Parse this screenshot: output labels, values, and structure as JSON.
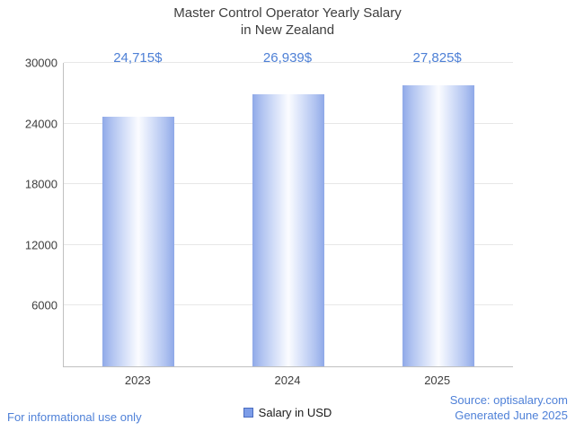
{
  "title": {
    "line1": "Master Control Operator Yearly Salary",
    "line2": "in New Zealand"
  },
  "chart_data": {
    "type": "bar",
    "categories": [
      "2023",
      "2024",
      "2025"
    ],
    "values": [
      24715,
      26939,
      27825
    ],
    "value_labels": [
      "24,715$",
      "26,939$",
      "27,825$"
    ],
    "ylim": [
      0,
      30000
    ],
    "yticks": [
      6000,
      12000,
      18000,
      24000,
      30000
    ],
    "grid": "horizontal",
    "legend_position": "bottom-center",
    "legend_label": "Salary in USD",
    "bar_edge_color": "#8fa9e8",
    "bar_center_color": "#fbfcff",
    "value_label_color": "#4e80d6"
  },
  "footer": {
    "left_note": "For informational use only",
    "source": "Source: optisalary.com",
    "generated": "Generated June 2025"
  }
}
